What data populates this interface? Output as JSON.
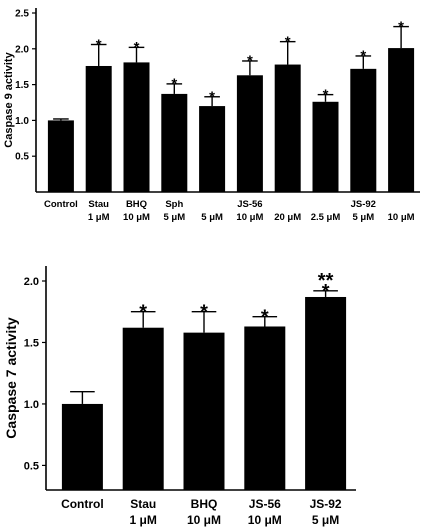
{
  "chart_data": [
    {
      "type": "bar",
      "ylabel": "Caspase 9 activity",
      "ylim": [
        0,
        2.5
      ],
      "yticks": [
        "0.5",
        "1.0",
        "1.5",
        "2.0",
        "2.5"
      ],
      "categories": [
        {
          "line1": "Control",
          "line2": ""
        },
        {
          "line1": "Stau",
          "line2": "1 μM"
        },
        {
          "line1": "BHQ",
          "line2": "10 μM"
        },
        {
          "line1": "Sph",
          "line2": "5 μM"
        },
        {
          "line1": "",
          "line2": "5 μM"
        },
        {
          "line1": "JS-56",
          "line2": "10 μM"
        },
        {
          "line1": "",
          "line2": "20 μM"
        },
        {
          "line1": "",
          "line2": "2.5 μM"
        },
        {
          "line1": "JS-92",
          "line2": "5 μM"
        },
        {
          "line1": "",
          "line2": "10 μM"
        }
      ],
      "values": [
        1.0,
        1.76,
        1.81,
        1.37,
        1.2,
        1.63,
        1.78,
        1.26,
        1.72,
        2.01
      ],
      "errors": [
        0.02,
        0.3,
        0.21,
        0.14,
        0.13,
        0.2,
        0.32,
        0.1,
        0.18,
        0.3
      ],
      "significance": [
        "",
        "*",
        "*",
        "*",
        "*",
        "*",
        "*",
        "*",
        "*",
        "*"
      ],
      "grid": false
    },
    {
      "type": "bar",
      "ylabel": "Caspase 7 activity",
      "ylim": [
        0.3,
        2.0
      ],
      "yticks": [
        "0.5",
        "1.0",
        "1.5",
        "2.0"
      ],
      "categories": [
        {
          "line1": "Control",
          "line2": ""
        },
        {
          "line1": "Stau",
          "line2": "1 μM"
        },
        {
          "line1": "BHQ",
          "line2": "10 μM"
        },
        {
          "line1": "JS-56",
          "line2": "10 μM"
        },
        {
          "line1": "JS-92",
          "line2": "5 μM"
        }
      ],
      "values": [
        1.0,
        1.62,
        1.58,
        1.63,
        1.87
      ],
      "errors": [
        0.1,
        0.13,
        0.17,
        0.08,
        0.05
      ],
      "significance": [
        "",
        "*",
        "*",
        "*",
        "**\n*"
      ],
      "grid": false
    }
  ]
}
